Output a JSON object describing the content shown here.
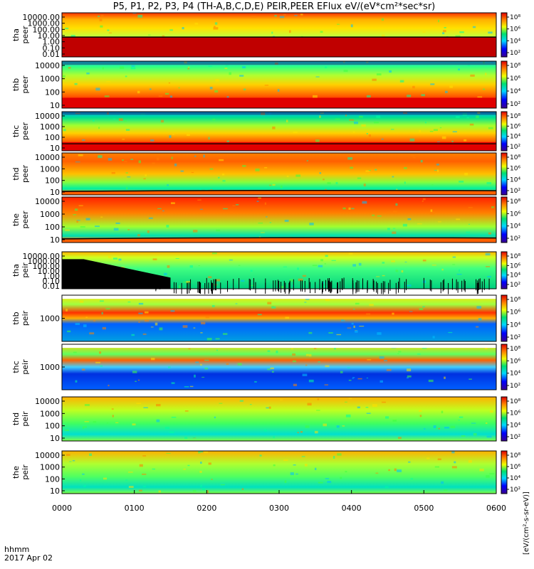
{
  "title": "P5, P1, P2, P3, P4 (TH-A,B,C,D,E) PEIR,PEER EFlux eV/(eV*cm²*sec*sr)",
  "footer": {
    "fmt": "hhmm",
    "date": "2017 Apr 02"
  },
  "colorbar_unit": "[eV/(cm²-s-sr-eV)]",
  "colors": {
    "low": "#0000c8",
    "mid": "#00e070",
    "high": "#ff2a00",
    "max": "#c00000",
    "trace": "#000000"
  },
  "chart_data": [
    {
      "type": "heatmap",
      "name": "tha peer",
      "ylabel": [
        "tha",
        "peer"
      ],
      "ylog": true,
      "yticks": [
        "10000.00",
        "1000.00",
        "100.00",
        "10.00",
        "1.00",
        "0.10",
        "0.01"
      ],
      "xticks": [
        "0000",
        "0100",
        "0200",
        "0300",
        "0400",
        "0500",
        "0600"
      ],
      "cbticks": [
        "10⁸",
        "10⁶",
        "10⁴",
        "10²"
      ]
    },
    {
      "type": "heatmap",
      "name": "thb peer",
      "ylabel": [
        "thb",
        "peer"
      ],
      "ylog": true,
      "yticks": [
        "10000",
        "1000",
        "100",
        "10"
      ],
      "cbticks": [
        "10⁸",
        "10⁶",
        "10⁴",
        "10²"
      ]
    },
    {
      "type": "heatmap",
      "name": "thc peer",
      "ylabel": [
        "thc",
        "peer"
      ],
      "ylog": true,
      "yticks": [
        "10000",
        "1000",
        "100",
        "10"
      ],
      "cbticks": [
        "10⁸",
        "10⁶",
        "10⁴",
        "10²"
      ]
    },
    {
      "type": "heatmap",
      "name": "thd peer",
      "ylabel": [
        "thd",
        "peer"
      ],
      "ylog": true,
      "yticks": [
        "10000",
        "1000",
        "100",
        "10"
      ],
      "cbticks": [
        "10⁸",
        "10⁶",
        "10⁴",
        "10²"
      ]
    },
    {
      "type": "heatmap",
      "name": "the peer",
      "ylabel": [
        "the",
        "peer"
      ],
      "ylog": true,
      "yticks": [
        "10000",
        "1000",
        "100",
        "10"
      ],
      "cbticks": [
        "10⁸",
        "10⁶",
        "10⁴",
        "10²"
      ]
    },
    {
      "type": "heatmap",
      "name": "tha peir",
      "ylabel": [
        "tha",
        "peir"
      ],
      "ylog": true,
      "yticks": [
        "10000.00",
        "1000.00",
        "100.00",
        "10.00",
        "1.00",
        "0.10",
        "0.01"
      ],
      "cbticks": [
        "10⁸",
        "10⁶",
        "10⁴",
        "10²"
      ]
    },
    {
      "type": "heatmap",
      "name": "thb peir",
      "ylabel": [
        "thb",
        "peir"
      ],
      "ylog": true,
      "yticks": [
        "1000"
      ],
      "cbticks": [
        "10⁸",
        "10⁶",
        "10⁴",
        "10²"
      ]
    },
    {
      "type": "heatmap",
      "name": "thc peir",
      "ylabel": [
        "thc",
        "peir"
      ],
      "ylog": true,
      "yticks": [
        "1000"
      ],
      "cbticks": [
        "10⁸",
        "10⁶",
        "10⁴",
        "10²"
      ]
    },
    {
      "type": "heatmap",
      "name": "thd peir",
      "ylabel": [
        "thd",
        "peir"
      ],
      "ylog": true,
      "yticks": [
        "10000",
        "1000",
        "100",
        "10"
      ],
      "cbticks": [
        "10⁸",
        "10⁶",
        "10⁴",
        "10²"
      ]
    },
    {
      "type": "heatmap",
      "name": "the peir",
      "ylabel": [
        "the",
        "peir"
      ],
      "ylog": true,
      "yticks": [
        "10000",
        "1000",
        "100",
        "10"
      ],
      "cbticks": [
        "10⁸",
        "10⁶",
        "10⁴",
        "10²"
      ]
    }
  ]
}
